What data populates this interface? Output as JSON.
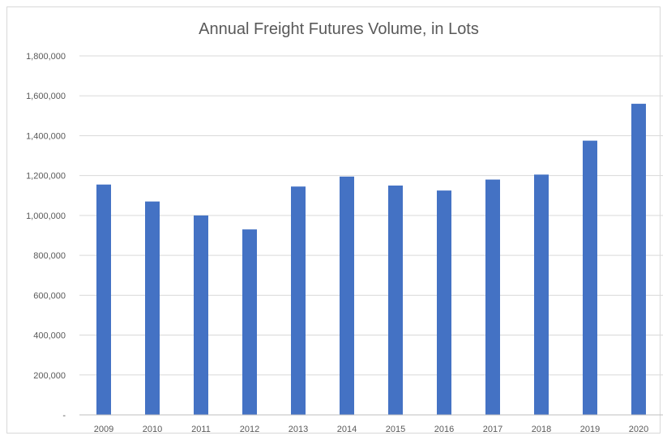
{
  "chart_data": {
    "type": "bar",
    "title": "Annual Freight Futures Volume, in Lots",
    "xlabel": "",
    "ylabel": "",
    "categories": [
      "2009",
      "2010",
      "2011",
      "2012",
      "2013",
      "2014",
      "2015",
      "2016",
      "2017",
      "2018",
      "2019",
      "2020"
    ],
    "series": [
      {
        "values": [
          1155000,
          1070000,
          1000000,
          930000,
          1145000,
          1195000,
          1150000,
          1125000,
          1180000,
          1205000,
          1375000,
          1560000
        ],
        "color": "#4472C4"
      }
    ],
    "ylim": [
      0,
      1800000
    ],
    "yticks": [
      0,
      200000,
      400000,
      600000,
      800000,
      1000000,
      1200000,
      1400000,
      1600000,
      1800000
    ],
    "ytick_labels": [
      "-",
      "200,000",
      "400,000",
      "600,000",
      "800,000",
      "1,000,000",
      "1,200,000",
      "1,400,000",
      "1,600,000",
      "1,800,000"
    ],
    "grid": true,
    "legend": "none"
  }
}
